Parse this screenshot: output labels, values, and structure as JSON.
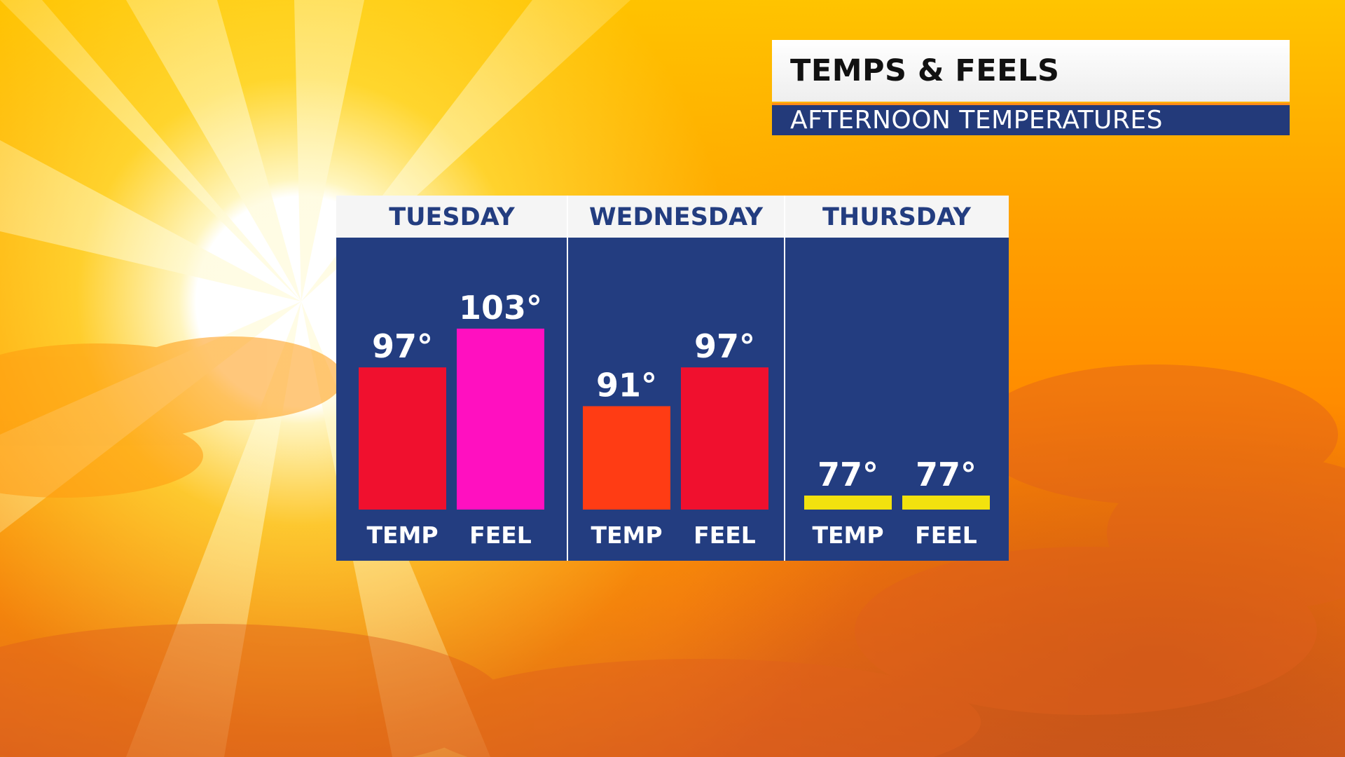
{
  "header": {
    "title": "TEMPS & FEELS",
    "subtitle": "AFTERNOON TEMPERATURES"
  },
  "colors": {
    "panel": "#233d80",
    "header_bg": "#f5f5f5",
    "day_text": "#233d80",
    "subtitle_bg": "#233a7a",
    "accent": "#ff8a1a"
  },
  "chart_data": {
    "type": "bar",
    "title": "TEMPS & FEELS",
    "subtitle": "AFTERNOON TEMPERATURES",
    "categories": [
      "TUESDAY",
      "WEDNESDAY",
      "THURSDAY"
    ],
    "series_labels": [
      "TEMP",
      "FEEL"
    ],
    "groups": [
      {
        "day": "TUESDAY",
        "bars": [
          {
            "label": "TEMP",
            "value": 97,
            "display": "97°",
            "color": "#f0102e"
          },
          {
            "label": "FEEL",
            "value": 103,
            "display": "103°",
            "color": "#ff10c0"
          }
        ]
      },
      {
        "day": "WEDNESDAY",
        "bars": [
          {
            "label": "TEMP",
            "value": 91,
            "display": "91°",
            "color": "#ff3c14"
          },
          {
            "label": "FEEL",
            "value": 97,
            "display": "97°",
            "color": "#f0102e"
          }
        ]
      },
      {
        "day": "THURSDAY",
        "bars": [
          {
            "label": "TEMP",
            "value": 77,
            "display": "77°",
            "color": "#f2e20e"
          },
          {
            "label": "FEEL",
            "value": 77,
            "display": "77°",
            "color": "#f2e20e"
          }
        ]
      }
    ],
    "ylim": [
      75,
      104
    ],
    "grid": false,
    "legend": "none"
  }
}
